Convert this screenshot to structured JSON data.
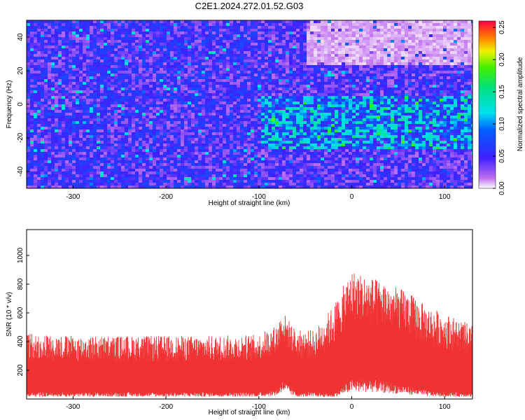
{
  "title": "C2E1.2024.272.01.52.G03",
  "chart_data": [
    {
      "type": "heatmap",
      "xlabel": "Height of straight line (km)",
      "ylabel": "Frequency (Hz)",
      "xlim": [
        -350,
        130
      ],
      "ylim": [
        -50,
        50
      ],
      "xticks": [
        -300,
        -200,
        -100,
        0,
        100
      ],
      "yticks": [
        -40,
        -20,
        0,
        20,
        40
      ],
      "colorbar": {
        "label": "Normalized spectral amplitude",
        "range": [
          0,
          0.26
        ],
        "ticks": [
          "0.00",
          "0.05",
          "0.10",
          "0.15",
          "0.20",
          "0.25"
        ]
      },
      "regions": [
        {
          "x": [
            -350,
            -100
          ],
          "y": [
            -50,
            50
          ],
          "level": 0.05
        },
        {
          "x": [
            -100,
            130
          ],
          "y": [
            -25,
            5
          ],
          "level": 0.1
        },
        {
          "x": [
            -50,
            130
          ],
          "y": [
            25,
            50
          ],
          "level": 0.01
        }
      ]
    },
    {
      "type": "area",
      "xlabel": "Height of straight line (km)",
      "ylabel": "SNR (10 * v/v)",
      "xlim": [
        -350,
        130
      ],
      "ylim": [
        0,
        1180
      ],
      "xticks": [
        -300,
        -200,
        -100,
        0,
        100
      ],
      "yticks": [
        200,
        400,
        600,
        800,
        1000
      ],
      "color": "#f03030",
      "series": [
        {
          "x": [
            -350,
            -300,
            -250,
            -200,
            -150,
            -100,
            -80,
            -75,
            -60,
            -40,
            -20,
            0,
            20,
            40,
            60,
            80,
            100,
            120,
            130
          ],
          "upper": [
            460,
            440,
            440,
            440,
            440,
            450,
            520,
            620,
            480,
            480,
            650,
            900,
            850,
            800,
            750,
            650,
            600,
            540,
            520
          ],
          "lower": [
            40,
            40,
            40,
            40,
            40,
            40,
            60,
            120,
            40,
            40,
            30,
            120,
            120,
            100,
            80,
            50,
            40,
            40,
            40
          ]
        }
      ]
    }
  ]
}
